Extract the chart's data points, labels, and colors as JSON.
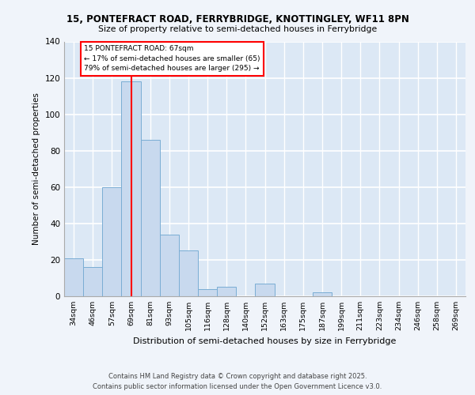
{
  "title1": "15, PONTEFRACT ROAD, FERRYBRIDGE, KNOTTINGLEY, WF11 8PN",
  "title2": "Size of property relative to semi-detached houses in Ferrybridge",
  "xlabel": "Distribution of semi-detached houses by size in Ferrybridge",
  "ylabel": "Number of semi-detached properties",
  "categories": [
    "34sqm",
    "46sqm",
    "57sqm",
    "69sqm",
    "81sqm",
    "93sqm",
    "105sqm",
    "116sqm",
    "128sqm",
    "140sqm",
    "152sqm",
    "163sqm",
    "175sqm",
    "187sqm",
    "199sqm",
    "211sqm",
    "223sqm",
    "234sqm",
    "246sqm",
    "258sqm",
    "269sqm"
  ],
  "values": [
    21,
    16,
    60,
    118,
    86,
    34,
    25,
    4,
    5,
    0,
    7,
    0,
    0,
    2,
    0,
    0,
    0,
    0,
    0,
    0,
    0
  ],
  "bar_color": "#c8d9ee",
  "bar_edge_color": "#7aadd4",
  "background_color": "#dce8f5",
  "grid_color": "#ffffff",
  "red_line_x": 3,
  "annotation_title": "15 PONTEFRACT ROAD: 67sqm",
  "annotation_line1": "← 17% of semi-detached houses are smaller (65)",
  "annotation_line2": "79% of semi-detached houses are larger (295) →",
  "ylim": [
    0,
    140
  ],
  "yticks": [
    0,
    20,
    40,
    60,
    80,
    100,
    120,
    140
  ],
  "footer1": "Contains HM Land Registry data © Crown copyright and database right 2025.",
  "footer2": "Contains public sector information licensed under the Open Government Licence v3.0."
}
